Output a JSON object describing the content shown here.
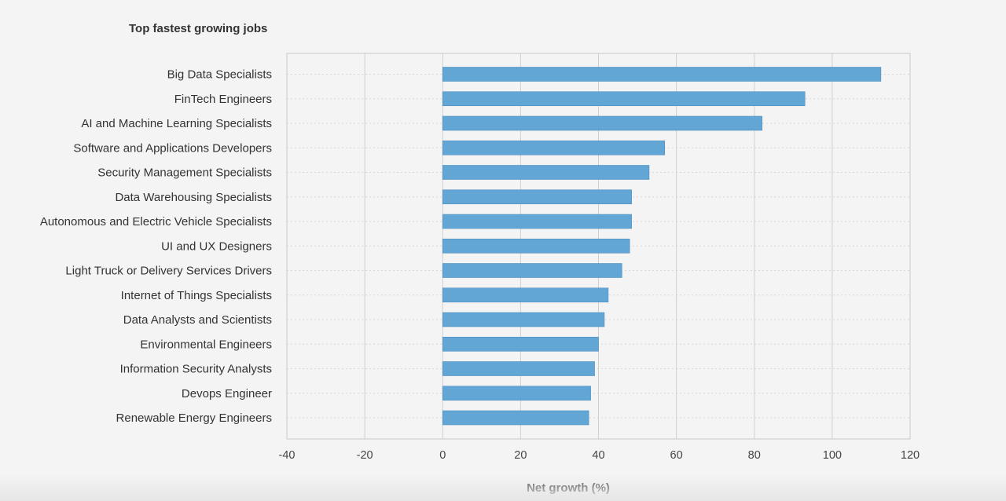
{
  "chart_data": {
    "type": "bar",
    "orientation": "horizontal",
    "title": "Top fastest growing jobs",
    "xlabel": "Net growth (%)",
    "ylabel": "",
    "xlim": [
      -40,
      120
    ],
    "xticks": [
      -40,
      -20,
      0,
      20,
      40,
      60,
      80,
      100,
      120
    ],
    "grid": true,
    "bar_color": "#62a6d6",
    "categories": [
      "Big Data Specialists",
      "FinTech Engineers",
      "AI and Machine Learning Specialists",
      "Software and Applications Developers",
      "Security Management Specialists",
      "Data Warehousing Specialists",
      "Autonomous and Electric Vehicle Specialists",
      "UI and UX Designers",
      "Light Truck or Delivery Services Drivers",
      "Internet of Things Specialists",
      "Data Analysts and Scientists",
      "Environmental Engineers",
      "Information Security Analysts",
      "Devops Engineer",
      "Renewable Energy Engineers"
    ],
    "values": [
      112.5,
      93,
      82,
      57,
      53,
      48.5,
      48.5,
      48,
      46,
      42.5,
      41.5,
      40,
      39,
      38,
      37.5
    ]
  }
}
